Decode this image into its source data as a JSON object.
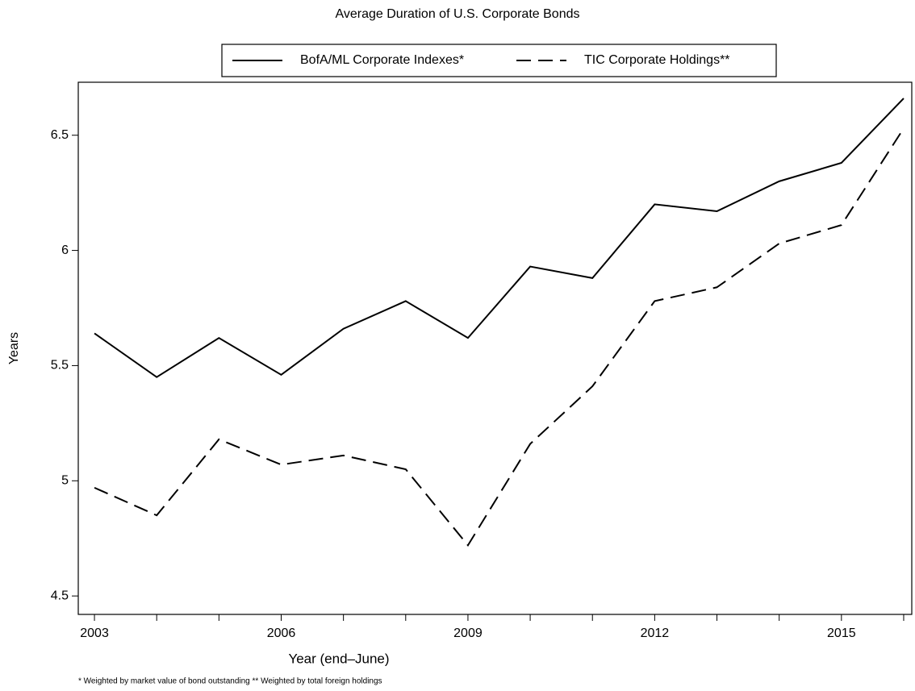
{
  "chart_data": {
    "type": "line",
    "title": "Average Duration of U.S. Corporate Bonds",
    "xlabel": "Year (end–June)",
    "ylabel": "Years",
    "footnote": "* Weighted by market value of bond outstanding ** Weighted by total foreign holdings",
    "x": [
      2003,
      2004,
      2005,
      2006,
      2007,
      2008,
      2009,
      2010,
      2011,
      2012,
      2013,
      2014,
      2015,
      2016
    ],
    "series": [
      {
        "name": "BofA/ML Corporate Indexes*",
        "color": "#000000",
        "dash": "solid",
        "values": [
          5.64,
          5.45,
          5.62,
          5.46,
          5.66,
          5.78,
          5.62,
          5.93,
          5.88,
          6.2,
          6.17,
          6.3,
          6.38,
          6.66
        ]
      },
      {
        "name": "TIC Corporate Holdings**",
        "color": "#000000",
        "dash": "dashed",
        "values": [
          4.97,
          4.85,
          5.18,
          5.07,
          5.11,
          5.05,
          4.72,
          5.16,
          5.41,
          5.78,
          5.84,
          6.03,
          6.11,
          6.53
        ]
      }
    ],
    "xlim": [
      2002.74,
      2016.13
    ],
    "xticks": [
      2003,
      {
        "value": 2004,
        "label": null
      },
      {
        "value": 2005,
        "label": null
      },
      2006,
      {
        "value": 2007,
        "label": null
      },
      {
        "value": 2008,
        "label": null
      },
      2009,
      {
        "value": 2010,
        "label": null
      },
      {
        "value": 2011,
        "label": null
      },
      2012,
      {
        "value": 2013,
        "label": null
      },
      {
        "value": 2014,
        "label": null
      },
      2015,
      {
        "value": 2016,
        "label": null
      }
    ],
    "ylim": [
      4.42,
      6.73
    ],
    "yticks": [
      4.5,
      5,
      5.5,
      6,
      6.5
    ],
    "grid": false,
    "legend": "top"
  }
}
